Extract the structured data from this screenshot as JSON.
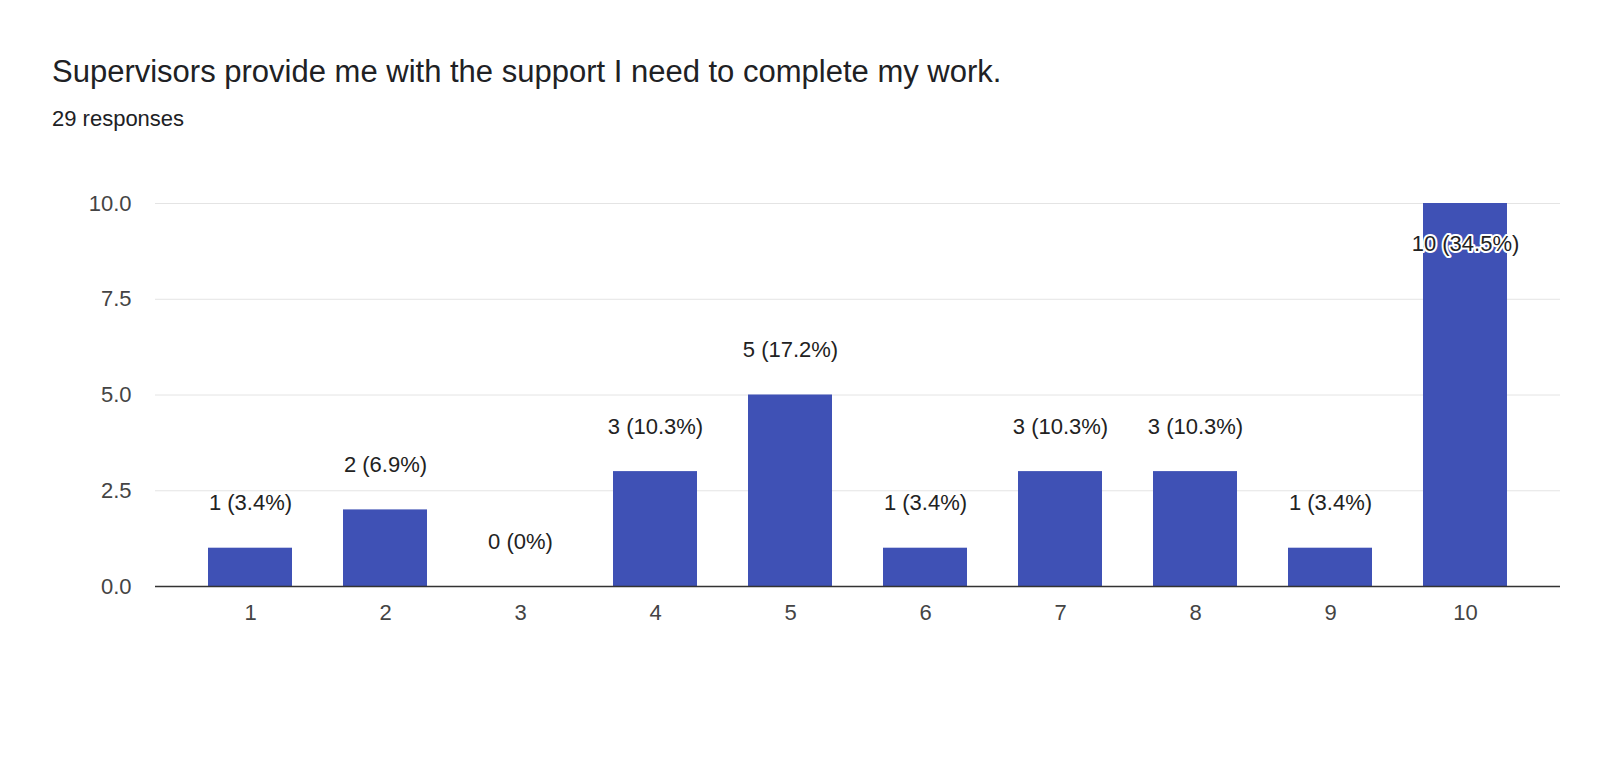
{
  "chart_data": {
    "type": "bar",
    "title": "Supervisors provide me with the support I need to complete my work.",
    "subtitle": "29 responses",
    "categories": [
      "1",
      "2",
      "3",
      "4",
      "5",
      "6",
      "7",
      "8",
      "9",
      "10"
    ],
    "values": [
      1,
      2,
      0,
      3,
      5,
      1,
      3,
      3,
      1,
      10
    ],
    "value_labels": [
      "1 (3.4%)",
      "2 (6.9%)",
      "0 (0%)",
      "3 (10.3%)",
      "5 (17.2%)",
      "1 (3.4%)",
      "3 (10.3%)",
      "3 (10.3%)",
      "1 (3.4%)",
      "10 (34.5%)"
    ],
    "color": "#3f51b5",
    "ylim": [
      0,
      10
    ],
    "yticks": [
      {
        "value": 0,
        "label": "0.0"
      },
      2.5,
      5,
      {
        "value": 5,
        "label": "5.0"
      },
      7.5,
      {
        "value": 10,
        "label": "10.0"
      }
    ],
    "grid": true,
    "data_labels": true
  }
}
